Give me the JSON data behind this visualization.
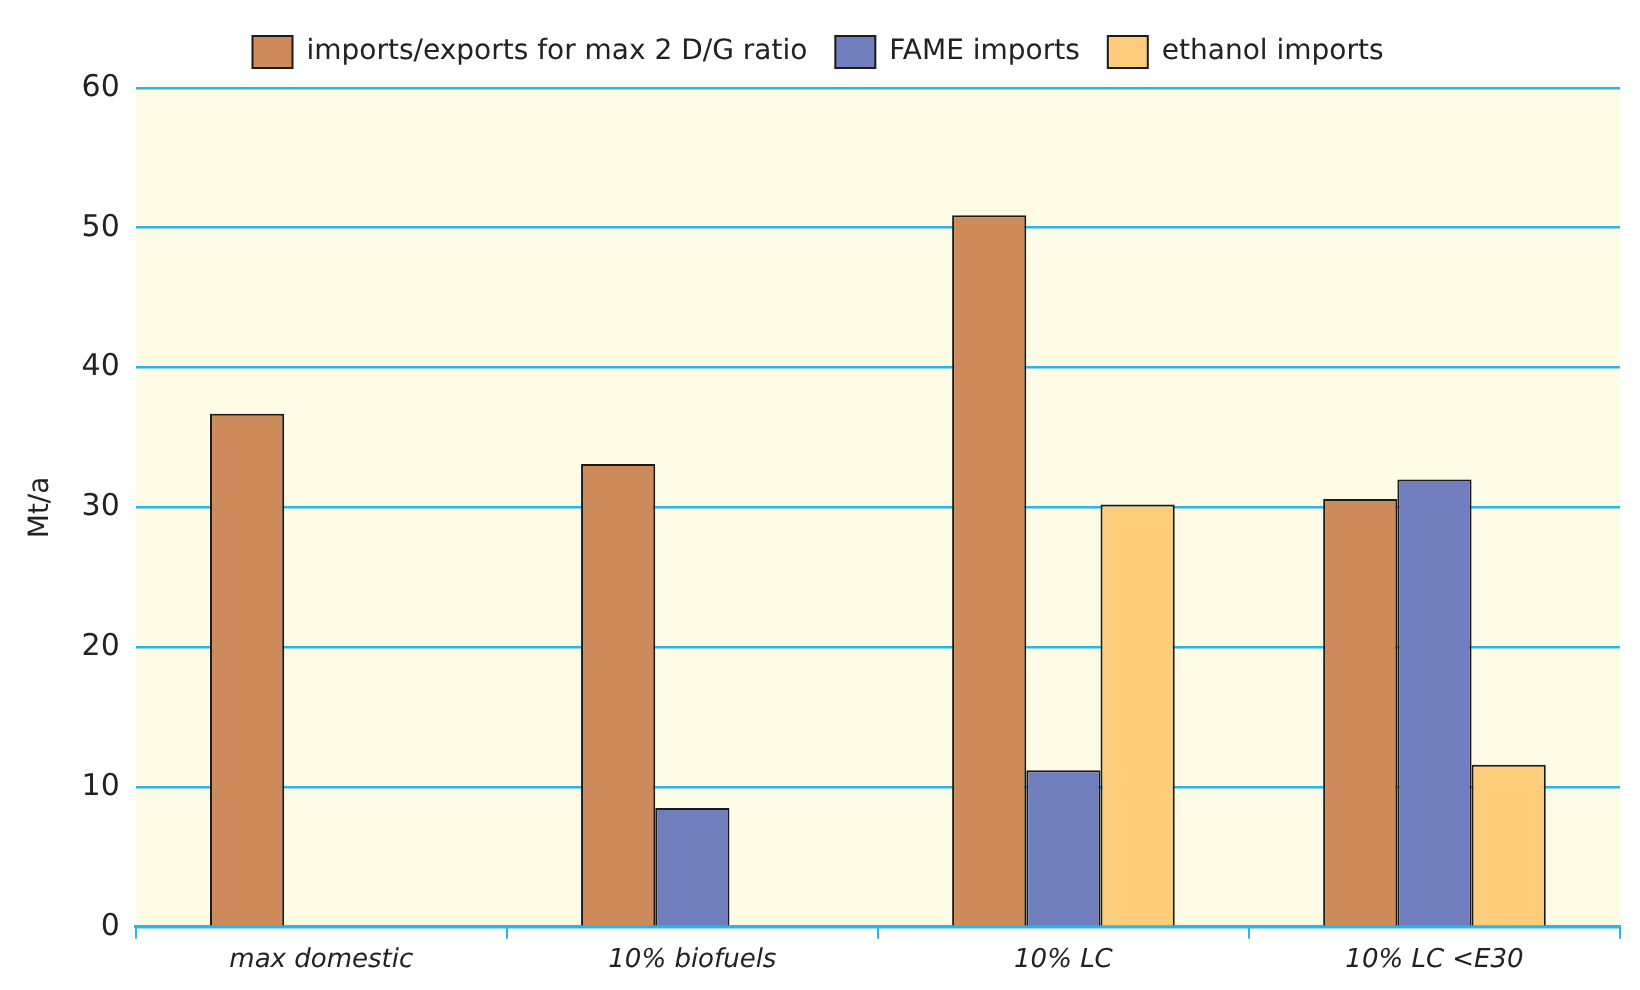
{
  "chart_data": {
    "type": "bar",
    "ylabel": "Mt/a",
    "categories": [
      "max domestic",
      "10% biofuels",
      "10% LC",
      "10% LC <E30"
    ],
    "series": [
      {
        "name": "imports/exports for max 2 D/G ratio",
        "color": "#cd8a5a",
        "values": [
          36.7,
          33.1,
          50.9,
          30.6
        ]
      },
      {
        "name": "FAME imports",
        "color": "#717ebd",
        "values": [
          null,
          8.5,
          11.2,
          32.0
        ]
      },
      {
        "name": "ethanol imports",
        "color": "#fecd7c",
        "values": [
          null,
          null,
          30.2,
          11.6
        ]
      }
    ],
    "ylim": [
      0,
      60
    ],
    "yticks": [
      0,
      10,
      20,
      30,
      40,
      50,
      60
    ],
    "grid": "y",
    "legend": "top"
  }
}
